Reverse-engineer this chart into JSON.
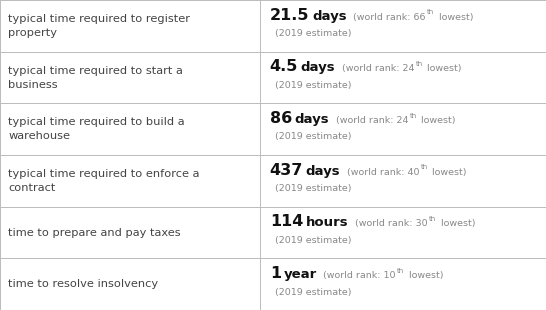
{
  "rows": [
    {
      "label": "typical time required to register\nproperty",
      "value": "21.5",
      "unit": "days",
      "rank": "66",
      "rank_suffix": "th",
      "estimate": "(2019 estimate)"
    },
    {
      "label": "typical time required to start a\nbusiness",
      "value": "4.5",
      "unit": "days",
      "rank": "24",
      "rank_suffix": "th",
      "estimate": "(2019 estimate)"
    },
    {
      "label": "typical time required to build a\nwarehouse",
      "value": "86",
      "unit": "days",
      "rank": "24",
      "rank_suffix": "th",
      "estimate": "(2019 estimate)"
    },
    {
      "label": "typical time required to enforce a\ncontract",
      "value": "437",
      "unit": "days",
      "rank": "40",
      "rank_suffix": "th",
      "estimate": "(2019 estimate)"
    },
    {
      "label": "time to prepare and pay taxes",
      "value": "114",
      "unit": "hours",
      "rank": "30",
      "rank_suffix": "th",
      "estimate": "(2019 estimate)"
    },
    {
      "label": "time to resolve insolvency",
      "value": "1",
      "unit": "year",
      "rank": "10",
      "rank_suffix": "th",
      "estimate": "(2019 estimate)"
    }
  ],
  "col_split": 0.476,
  "bg_color": "#ffffff",
  "border_color": "#bbbbbb",
  "label_color": "#444444",
  "value_color": "#111111",
  "rank_color": "#888888",
  "figsize": [
    5.46,
    3.1
  ],
  "dpi": 100
}
